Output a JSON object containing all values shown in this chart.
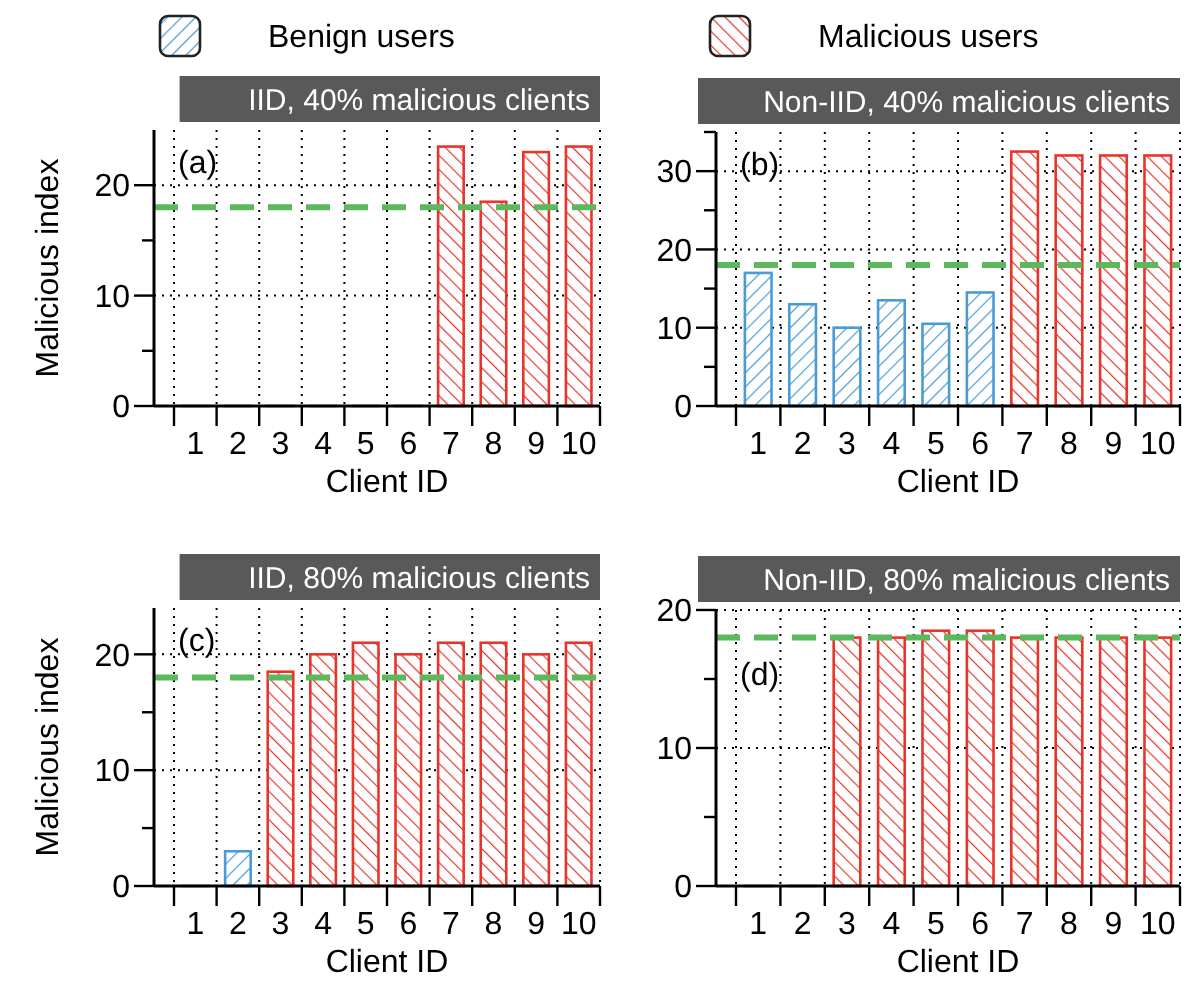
{
  "chart_data": [
    {
      "type": "bar",
      "title": "IID, 40% malicious clients",
      "xlabel": "Client ID",
      "ylabel": "Malicious index",
      "categories": [
        "1",
        "2",
        "3",
        "4",
        "5",
        "6",
        "7",
        "8",
        "9",
        "10"
      ],
      "series": [
        {
          "name": "Benign users",
          "color": "#4a9bd4",
          "values": [
            0,
            0,
            0,
            0,
            0,
            0,
            null,
            null,
            null,
            null
          ]
        },
        {
          "name": "Malicious users",
          "color": "#e8352b",
          "values": [
            null,
            null,
            null,
            null,
            null,
            null,
            23.5,
            18.5,
            23,
            23.5
          ]
        }
      ],
      "ylim": [
        0,
        25
      ],
      "yticks": [
        0,
        {
          "value": 5,
          "label": null
        },
        10,
        {
          "value": 15,
          "label": null
        },
        20
      ],
      "grid": true,
      "legend": "top",
      "ref_lines": [
        {
          "axis": "y",
          "value": 18,
          "color": "#5cb85c",
          "line_style": "dashed"
        }
      ],
      "annotations": [
        "(a)"
      ]
    },
    {
      "type": "bar",
      "title": "Non-IID, 40% malicious clients",
      "xlabel": "Client ID",
      "categories": [
        "1",
        "2",
        "3",
        "4",
        "5",
        "6",
        "7",
        "8",
        "9",
        "10"
      ],
      "series": [
        {
          "color": "#4a9bd4",
          "values": [
            17,
            13,
            10,
            13.5,
            10.5,
            14.5,
            null,
            null,
            null,
            null
          ]
        },
        {
          "color": "#e8352b",
          "values": [
            null,
            null,
            null,
            null,
            null,
            null,
            32.5,
            32,
            32,
            32
          ]
        }
      ],
      "ylim": [
        0,
        35
      ],
      "yticks": [
        0,
        {
          "value": 5,
          "label": null
        },
        10,
        {
          "value": 15,
          "label": null
        },
        20,
        {
          "value": 25,
          "label": null
        },
        30,
        {
          "value": 35,
          "label": null
        }
      ],
      "grid": true,
      "ref_lines": [
        {
          "axis": "y",
          "value": 18,
          "color": "#5cb85c",
          "line_style": "dashed"
        }
      ],
      "annotations": [
        "(b)"
      ]
    },
    {
      "type": "bar",
      "title": "IID, 80% malicious clients",
      "xlabel": "Client ID",
      "ylabel": "Malicious index",
      "categories": [
        "1",
        "2",
        "3",
        "4",
        "5",
        "6",
        "7",
        "8",
        "9",
        "10"
      ],
      "series": [
        {
          "color": "#4a9bd4",
          "values": [
            0,
            3,
            null,
            null,
            null,
            null,
            null,
            null,
            null,
            null
          ]
        },
        {
          "color": "#e8352b",
          "values": [
            null,
            null,
            18.5,
            20,
            21,
            20,
            21,
            21,
            20,
            21
          ]
        }
      ],
      "ylim": [
        0,
        24
      ],
      "yticks": [
        0,
        {
          "value": 5,
          "label": null
        },
        10,
        {
          "value": 15,
          "label": null
        },
        20
      ],
      "grid": true,
      "ref_lines": [
        {
          "axis": "y",
          "value": 18,
          "color": "#5cb85c",
          "line_style": "dashed"
        }
      ],
      "annotations": [
        "(c)"
      ]
    },
    {
      "type": "bar",
      "title": "Non-IID, 80% malicious clients",
      "xlabel": "Client ID",
      "categories": [
        "1",
        "2",
        "3",
        "4",
        "5",
        "6",
        "7",
        "8",
        "9",
        "10"
      ],
      "series": [
        {
          "color": "#4a9bd4",
          "values": [
            0,
            0,
            null,
            null,
            null,
            null,
            null,
            null,
            null,
            null
          ]
        },
        {
          "color": "#e8352b",
          "values": [
            null,
            null,
            18,
            18,
            18.5,
            18.5,
            18,
            18,
            18,
            18
          ]
        }
      ],
      "ylim": [
        0,
        20
      ],
      "yticks": [
        0,
        {
          "value": 5,
          "label": null
        },
        10,
        {
          "value": 15,
          "label": null
        },
        20
      ],
      "grid": true,
      "ref_lines": [
        {
          "axis": "y",
          "value": 18,
          "color": "#5cb85c",
          "line_style": "dashed"
        }
      ],
      "annotations": [
        "(d)"
      ]
    }
  ]
}
